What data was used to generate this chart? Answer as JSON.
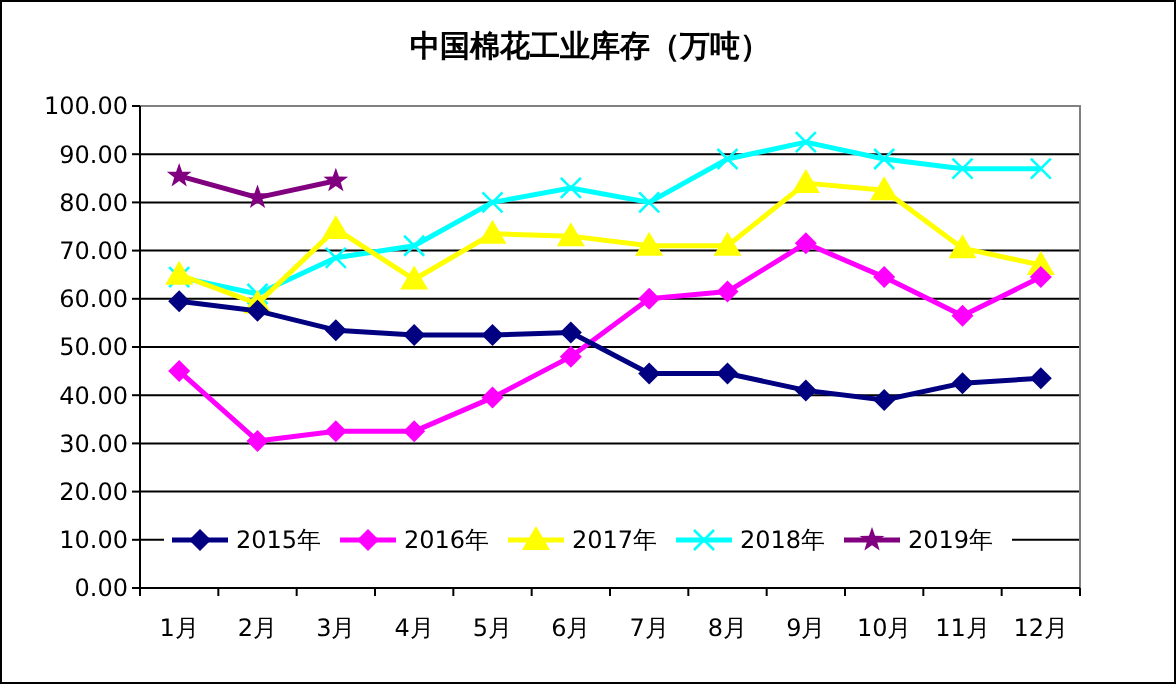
{
  "chart_data": {
    "type": "line",
    "title": "中国棉花工业库存（万吨）",
    "categories": [
      "1月",
      "2月",
      "3月",
      "4月",
      "5月",
      "6月",
      "7月",
      "8月",
      "9月",
      "10月",
      "11月",
      "12月"
    ],
    "ylim": [
      0,
      100
    ],
    "yticks": [
      {
        "value": 0,
        "label": "0.00"
      },
      {
        "value": 10,
        "label": "10.00"
      },
      {
        "value": 20,
        "label": "20.00"
      },
      {
        "value": 30,
        "label": "30.00"
      },
      {
        "value": 40,
        "label": "40.00"
      },
      {
        "value": 50,
        "label": "50.00"
      },
      {
        "value": 60,
        "label": "60.00"
      },
      {
        "value": 70,
        "label": "70.00"
      },
      {
        "value": 80,
        "label": "80.00"
      },
      {
        "value": 90,
        "label": "90.00"
      },
      {
        "value": 100,
        "label": "100.00"
      }
    ],
    "grid": "y",
    "legend": "bottom",
    "series": [
      {
        "name": "2015年",
        "color": "#000080",
        "marker": "diamond",
        "values": [
          59.5,
          57.5,
          53.5,
          52.5,
          52.5,
          53,
          44.5,
          44.5,
          41,
          39,
          42.5,
          43.5
        ]
      },
      {
        "name": "2016年",
        "color": "#ff00ff",
        "marker": "diamond",
        "values": [
          45,
          30.5,
          32.5,
          32.5,
          39.5,
          48,
          60,
          61.5,
          71.5,
          64.5,
          56.5,
          64.5
        ]
      },
      {
        "name": "2017年",
        "color": "#ffff00",
        "marker": "triangle",
        "values": [
          65,
          59,
          74.5,
          64,
          73.5,
          73,
          71,
          71,
          84,
          82.5,
          70.5,
          67
        ]
      },
      {
        "name": "2018年",
        "color": "#00ffff",
        "marker": "cross",
        "values": [
          64.5,
          61,
          68.5,
          71,
          80,
          83,
          80,
          89,
          92.5,
          89,
          87,
          87
        ]
      },
      {
        "name": "2019年",
        "color": "#800080",
        "marker": "star",
        "values": [
          85.5,
          81,
          84.5,
          null,
          null,
          null,
          null,
          null,
          null,
          null,
          null,
          null
        ]
      }
    ]
  }
}
